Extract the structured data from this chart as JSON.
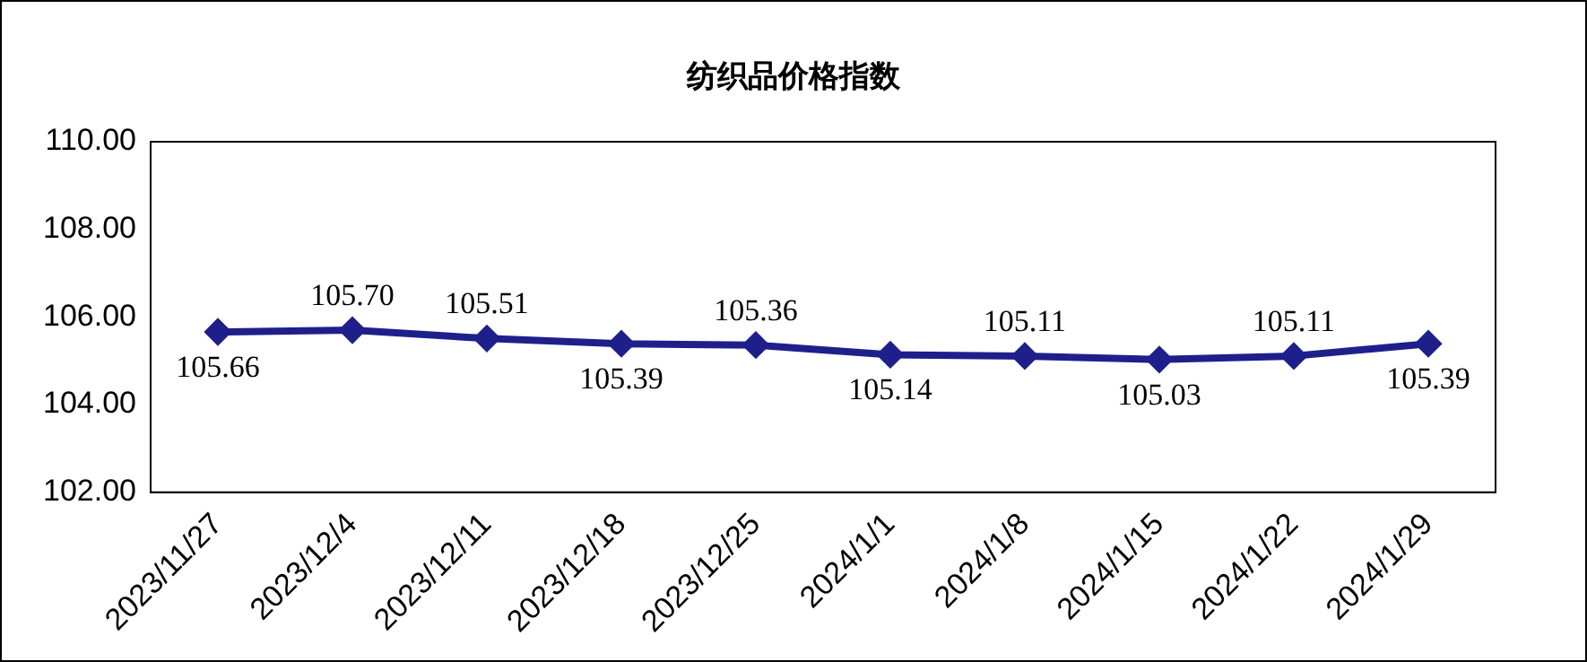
{
  "chart_data": {
    "type": "line",
    "title": "纺织品价格指数",
    "categories": [
      "2023/11/27",
      "2023/12/4",
      "2023/12/11",
      "2023/12/18",
      "2023/12/25",
      "2024/1/1",
      "2024/1/8",
      "2024/1/15",
      "2024/1/22",
      "2024/1/29"
    ],
    "series": [
      {
        "color": "#1f1f8c",
        "values": [
          105.66,
          105.7,
          105.51,
          105.39,
          105.36,
          105.14,
          105.11,
          105.03,
          105.11,
          105.39
        ],
        "value_labels": [
          "105.66",
          "105.70",
          "105.51",
          "105.39",
          "105.36",
          "105.14",
          "105.11",
          "105.03",
          "105.11",
          "105.39"
        ]
      }
    ],
    "ylim": [
      102,
      110
    ],
    "yticks": [
      {
        "value": 102,
        "label": "102.00"
      },
      {
        "value": 104,
        "label": "104.00"
      },
      {
        "value": 106,
        "label": "106.00"
      },
      {
        "value": 108,
        "label": "108.00"
      },
      {
        "value": 110,
        "label": "110.00"
      }
    ],
    "grid": false,
    "legend": false,
    "marker": "diamond",
    "line_style": "solid"
  }
}
